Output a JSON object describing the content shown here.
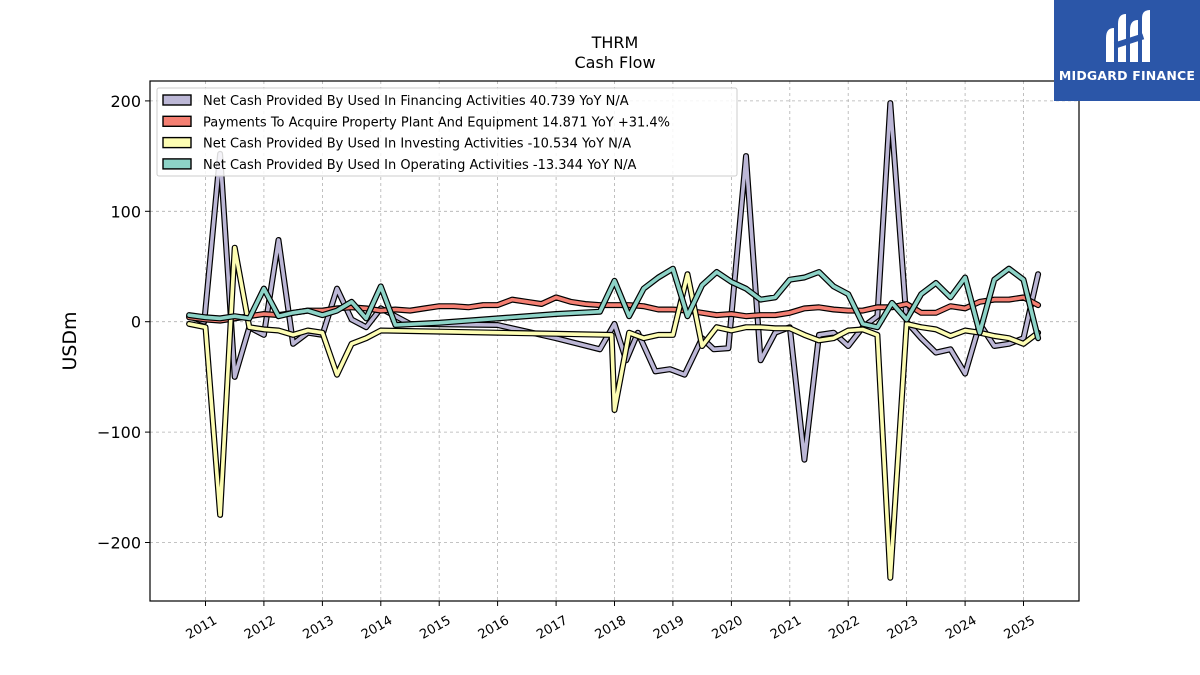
{
  "logo": {
    "text": "MIDGARD FINANCE",
    "icon": "midgard-logo-icon",
    "background": "#2b56a8"
  },
  "chart_data": {
    "type": "line",
    "title": "THRM",
    "subtitle": "Cash Flow",
    "ylabel": "USDm",
    "xlabel": "",
    "ylim": [
      -253,
      218
    ],
    "xlim": [
      2010.05,
      2025.95
    ],
    "yticks": [
      -200,
      -100,
      0,
      100,
      200
    ],
    "ytick_labels": [
      "−200",
      "−100",
      "0",
      "100",
      "200"
    ],
    "xticks": [
      2011,
      2012,
      2013,
      2014,
      2015,
      2016,
      2017,
      2018,
      2019,
      2020,
      2021,
      2022,
      2023,
      2024,
      2025
    ],
    "xtick_labels": [
      "2011",
      "2012",
      "2013",
      "2014",
      "2015",
      "2016",
      "2017",
      "2018",
      "2019",
      "2020",
      "2021",
      "2022",
      "2023",
      "2024",
      "2025"
    ],
    "grid": true,
    "legend_position": "top-left",
    "series": [
      {
        "name": "Net Cash Provided By Used In Financing Activities",
        "legend_label": "Net Cash Provided By Used In Financing Activities  40.739 YoY N/A",
        "color": "#bcb7d6",
        "points": [
          [
            2010.72,
            5
          ],
          [
            2010.98,
            0
          ],
          [
            2011.25,
            152
          ],
          [
            2011.5,
            -50
          ],
          [
            2011.75,
            -5
          ],
          [
            2012.0,
            -12
          ],
          [
            2012.25,
            74
          ],
          [
            2012.5,
            -20
          ],
          [
            2012.75,
            -10
          ],
          [
            2013.0,
            -12
          ],
          [
            2013.25,
            30
          ],
          [
            2013.5,
            2
          ],
          [
            2013.75,
            -5
          ],
          [
            2014.0,
            12
          ],
          [
            2014.5,
            -2
          ],
          [
            2016.0,
            -3
          ],
          [
            2017.0,
            -15
          ],
          [
            2017.75,
            -25
          ],
          [
            2018.0,
            -2
          ],
          [
            2018.2,
            -35
          ],
          [
            2018.4,
            -10
          ],
          [
            2018.7,
            -45
          ],
          [
            2018.95,
            -43
          ],
          [
            2019.2,
            -48
          ],
          [
            2019.5,
            -15
          ],
          [
            2019.7,
            -25
          ],
          [
            2019.95,
            -24
          ],
          [
            2020.25,
            150
          ],
          [
            2020.5,
            -35
          ],
          [
            2020.75,
            -10
          ],
          [
            2021.0,
            -5
          ],
          [
            2021.25,
            -125
          ],
          [
            2021.5,
            -12
          ],
          [
            2021.75,
            -10
          ],
          [
            2022.0,
            -22
          ],
          [
            2022.25,
            -5
          ],
          [
            2022.5,
            5
          ],
          [
            2022.72,
            198
          ],
          [
            2023.0,
            0
          ],
          [
            2023.25,
            -15
          ],
          [
            2023.5,
            -28
          ],
          [
            2023.75,
            -25
          ],
          [
            2024.0,
            -47
          ],
          [
            2024.25,
            -2
          ],
          [
            2024.5,
            -22
          ],
          [
            2024.75,
            -20
          ],
          [
            2025.0,
            -15
          ],
          [
            2025.25,
            43
          ]
        ]
      },
      {
        "name": "Payments To Acquire Property Plant And Equipment",
        "legend_label": "Payments To Acquire Property Plant And Equipment  14.871 YoY +31.4%",
        "color": "#f47f72",
        "points": [
          [
            2010.72,
            4
          ],
          [
            2011.0,
            2
          ],
          [
            2011.25,
            1
          ],
          [
            2011.5,
            3
          ],
          [
            2011.75,
            5
          ],
          [
            2012.0,
            7
          ],
          [
            2012.25,
            6
          ],
          [
            2012.5,
            8
          ],
          [
            2012.75,
            10
          ],
          [
            2013.0,
            10
          ],
          [
            2013.25,
            12
          ],
          [
            2013.5,
            13
          ],
          [
            2013.75,
            12
          ],
          [
            2014.0,
            10
          ],
          [
            2014.25,
            11
          ],
          [
            2014.5,
            10
          ],
          [
            2014.75,
            12
          ],
          [
            2015.0,
            14
          ],
          [
            2015.25,
            14
          ],
          [
            2015.5,
            13
          ],
          [
            2015.75,
            15
          ],
          [
            2016.0,
            15
          ],
          [
            2016.25,
            20
          ],
          [
            2016.5,
            18
          ],
          [
            2016.75,
            16
          ],
          [
            2017.0,
            22
          ],
          [
            2017.25,
            18
          ],
          [
            2017.5,
            16
          ],
          [
            2017.75,
            15
          ],
          [
            2018.0,
            15
          ],
          [
            2018.25,
            15
          ],
          [
            2018.5,
            14
          ],
          [
            2018.75,
            11
          ],
          [
            2019.0,
            11
          ],
          [
            2019.25,
            10
          ],
          [
            2019.5,
            8
          ],
          [
            2019.75,
            6
          ],
          [
            2020.0,
            7
          ],
          [
            2020.25,
            5
          ],
          [
            2020.5,
            6
          ],
          [
            2020.75,
            6
          ],
          [
            2021.0,
            8
          ],
          [
            2021.25,
            12
          ],
          [
            2021.5,
            13
          ],
          [
            2021.75,
            11
          ],
          [
            2022.0,
            10
          ],
          [
            2022.25,
            10
          ],
          [
            2022.5,
            13
          ],
          [
            2022.75,
            13
          ],
          [
            2023.0,
            16
          ],
          [
            2023.25,
            8
          ],
          [
            2023.5,
            8
          ],
          [
            2023.75,
            14
          ],
          [
            2024.0,
            12
          ],
          [
            2024.25,
            18
          ],
          [
            2024.5,
            20
          ],
          [
            2024.75,
            20
          ],
          [
            2025.0,
            22
          ],
          [
            2025.25,
            15
          ]
        ]
      },
      {
        "name": "Net Cash Provided By Used In Investing Activities",
        "legend_label": "Net Cash Provided By Used In Investing Activities  -10.534 YoY N/A",
        "color": "#fdfdb3",
        "points": [
          [
            2010.72,
            -2
          ],
          [
            2011.0,
            -5
          ],
          [
            2011.25,
            -175
          ],
          [
            2011.5,
            67
          ],
          [
            2011.75,
            -5
          ],
          [
            2012.0,
            -7
          ],
          [
            2012.25,
            -8
          ],
          [
            2012.5,
            -12
          ],
          [
            2012.75,
            -8
          ],
          [
            2013.0,
            -10
          ],
          [
            2013.25,
            -48
          ],
          [
            2013.5,
            -20
          ],
          [
            2013.75,
            -15
          ],
          [
            2014.0,
            -8
          ],
          [
            2015.0,
            -9
          ],
          [
            2016.0,
            -10
          ],
          [
            2017.0,
            -11
          ],
          [
            2017.95,
            -12
          ],
          [
            2018.0,
            -80
          ],
          [
            2018.25,
            -10
          ],
          [
            2018.5,
            -15
          ],
          [
            2018.75,
            -12
          ],
          [
            2019.0,
            -12
          ],
          [
            2019.25,
            43
          ],
          [
            2019.5,
            -22
          ],
          [
            2019.75,
            -5
          ],
          [
            2020.0,
            -8
          ],
          [
            2020.25,
            -5
          ],
          [
            2020.5,
            -5
          ],
          [
            2020.75,
            -6
          ],
          [
            2021.0,
            -6
          ],
          [
            2021.25,
            -12
          ],
          [
            2021.5,
            -17
          ],
          [
            2021.75,
            -15
          ],
          [
            2022.0,
            -8
          ],
          [
            2022.25,
            -7
          ],
          [
            2022.5,
            -12
          ],
          [
            2022.72,
            -232
          ],
          [
            2023.0,
            -2
          ],
          [
            2023.25,
            -5
          ],
          [
            2023.5,
            -7
          ],
          [
            2023.75,
            -13
          ],
          [
            2024.0,
            -8
          ],
          [
            2024.25,
            -10
          ],
          [
            2024.5,
            -13
          ],
          [
            2024.75,
            -15
          ],
          [
            2025.0,
            -20
          ],
          [
            2025.25,
            -10
          ]
        ]
      },
      {
        "name": "Net Cash Provided By Used In Operating Activities",
        "legend_label": "Net Cash Provided By Used In Operating Activities  -13.344 YoY N/A",
        "color": "#8dd3c7",
        "points": [
          [
            2010.72,
            6
          ],
          [
            2011.0,
            4
          ],
          [
            2011.25,
            3
          ],
          [
            2011.5,
            5
          ],
          [
            2011.75,
            3
          ],
          [
            2012.0,
            30
          ],
          [
            2012.25,
            5
          ],
          [
            2012.5,
            8
          ],
          [
            2012.75,
            10
          ],
          [
            2013.0,
            6
          ],
          [
            2013.25,
            10
          ],
          [
            2013.5,
            18
          ],
          [
            2013.75,
            3
          ],
          [
            2014.0,
            32
          ],
          [
            2014.25,
            -3
          ],
          [
            2015.0,
            -1
          ],
          [
            2016.0,
            3
          ],
          [
            2017.0,
            7
          ],
          [
            2017.75,
            9
          ],
          [
            2018.0,
            37
          ],
          [
            2018.25,
            5
          ],
          [
            2018.5,
            30
          ],
          [
            2018.75,
            40
          ],
          [
            2019.0,
            48
          ],
          [
            2019.25,
            5
          ],
          [
            2019.5,
            33
          ],
          [
            2019.75,
            45
          ],
          [
            2020.0,
            36
          ],
          [
            2020.25,
            30
          ],
          [
            2020.5,
            20
          ],
          [
            2020.75,
            22
          ],
          [
            2021.0,
            38
          ],
          [
            2021.25,
            40
          ],
          [
            2021.5,
            45
          ],
          [
            2021.75,
            32
          ],
          [
            2022.0,
            25
          ],
          [
            2022.25,
            -2
          ],
          [
            2022.5,
            -5
          ],
          [
            2022.75,
            17
          ],
          [
            2023.0,
            2
          ],
          [
            2023.25,
            25
          ],
          [
            2023.5,
            35
          ],
          [
            2023.75,
            22
          ],
          [
            2024.0,
            40
          ],
          [
            2024.25,
            -10
          ],
          [
            2024.5,
            38
          ],
          [
            2024.75,
            48
          ],
          [
            2025.0,
            38
          ],
          [
            2025.25,
            -15
          ]
        ]
      }
    ]
  }
}
